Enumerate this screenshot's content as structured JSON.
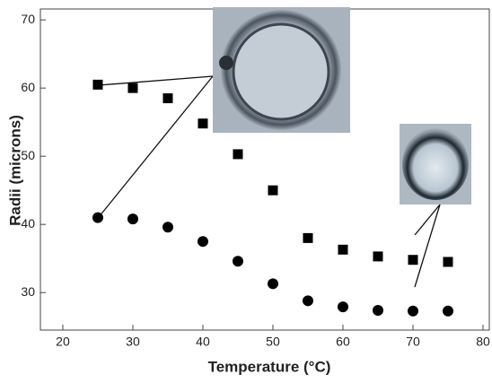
{
  "chart_data": {
    "type": "scatter",
    "x_label": "Temperature (°C)",
    "y_label": "Radii (microns)",
    "x": [
      25,
      30,
      35,
      40,
      45,
      50,
      55,
      60,
      65,
      70,
      75
    ],
    "series": [
      {
        "marker": "square",
        "color": "#000000",
        "values": [
          60.5,
          60,
          58.5,
          54.8,
          50.3,
          45,
          38,
          36.3,
          35.3,
          34.8,
          34.5
        ]
      },
      {
        "marker": "circle",
        "color": "#000000",
        "values": [
          41,
          40.8,
          39.6,
          37.5,
          34.6,
          31.3,
          28.8,
          27.9,
          27.4,
          27.3,
          27.3
        ]
      }
    ],
    "xlim": [
      16.8,
      80.9
    ],
    "xticks": [
      20,
      30,
      40,
      50,
      60,
      70,
      80
    ],
    "ylim": [
      24.5,
      71.6
    ],
    "yticks": [
      30,
      40,
      50,
      60,
      70
    ]
  }
}
